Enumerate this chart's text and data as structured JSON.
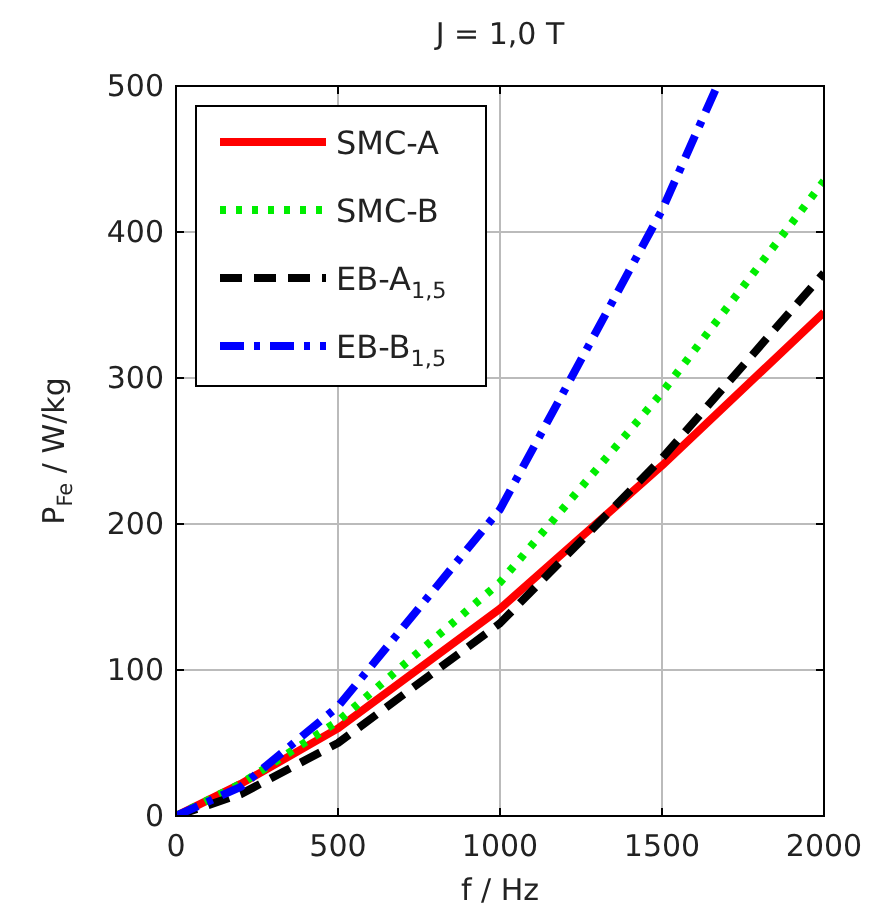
{
  "chart_data": {
    "type": "line",
    "title": "J = 1,0 T",
    "xlabel": "f / Hz",
    "ylabel": "P$_{Fe}$ / W/kg",
    "xlim": [
      0,
      2000
    ],
    "xticks": [
      0,
      500,
      1000,
      1500,
      2000
    ],
    "ylim": [
      0,
      500
    ],
    "yticks": [
      0,
      100,
      200,
      300,
      400,
      500
    ],
    "grid": true,
    "legend": "top left",
    "series": [
      {
        "name": "SMC-A",
        "color": "#ff0000",
        "line_style": "solid",
        "x": [
          0,
          200,
          500,
          1000,
          1500,
          2000
        ],
        "values": [
          0,
          22,
          60,
          142,
          240,
          345
        ]
      },
      {
        "name": "SMC-B",
        "color": "#00ee00",
        "line_style": "dotted",
        "x": [
          0,
          200,
          500,
          1000,
          1500,
          2000
        ],
        "values": [
          0,
          22,
          65,
          160,
          290,
          435
        ]
      },
      {
        "name": "EB-A$_{1,5}$",
        "color": "#000000",
        "line_style": "dashed",
        "x": [
          0,
          200,
          500,
          1000,
          1500,
          2000
        ],
        "values": [
          0,
          15,
          50,
          132,
          245,
          372
        ]
      },
      {
        "name": "EB-B$_{1,5}$",
        "color": "#0000ff",
        "line_style": "dashdot",
        "x": [
          0,
          200,
          500,
          1000,
          1500,
          1670
        ],
        "values": [
          0,
          20,
          75,
          210,
          415,
          500
        ]
      }
    ]
  }
}
